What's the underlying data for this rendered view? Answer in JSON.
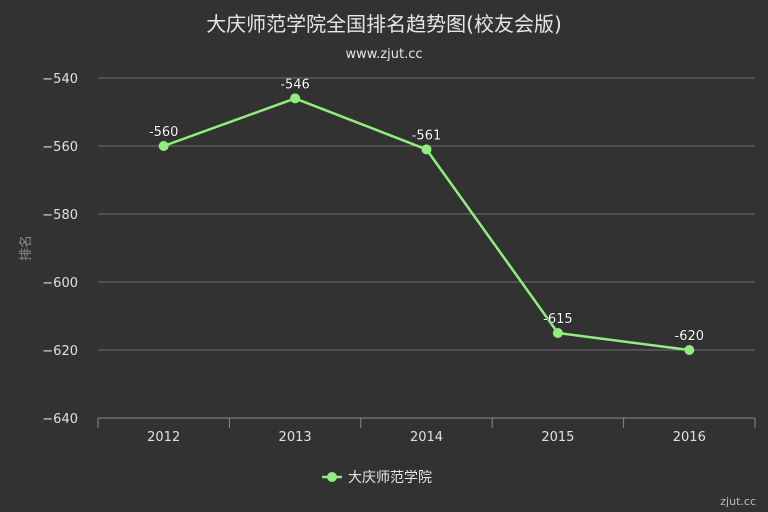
{
  "chart_data": {
    "type": "line",
    "title": "大庆师范学院全国排名趋势图(校友会版)",
    "subtitle": "www.zjut.cc",
    "ylabel": "排名",
    "xlabel": "",
    "categories": [
      "2012",
      "2013",
      "2014",
      "2015",
      "2016"
    ],
    "yticks": [
      -540,
      -560,
      -580,
      -600,
      -620,
      -640
    ],
    "ylim": [
      -640,
      -540
    ],
    "grid": true,
    "legend_position": "bottom-center",
    "series": [
      {
        "name": "大庆师范学院",
        "values": [
          -560,
          -546,
          -561,
          -615,
          -620
        ],
        "labels": [
          "-560",
          "-546",
          "-561",
          "-615",
          "-620"
        ],
        "color": "#90ee7e"
      }
    ],
    "credit": "zjut.cc"
  }
}
